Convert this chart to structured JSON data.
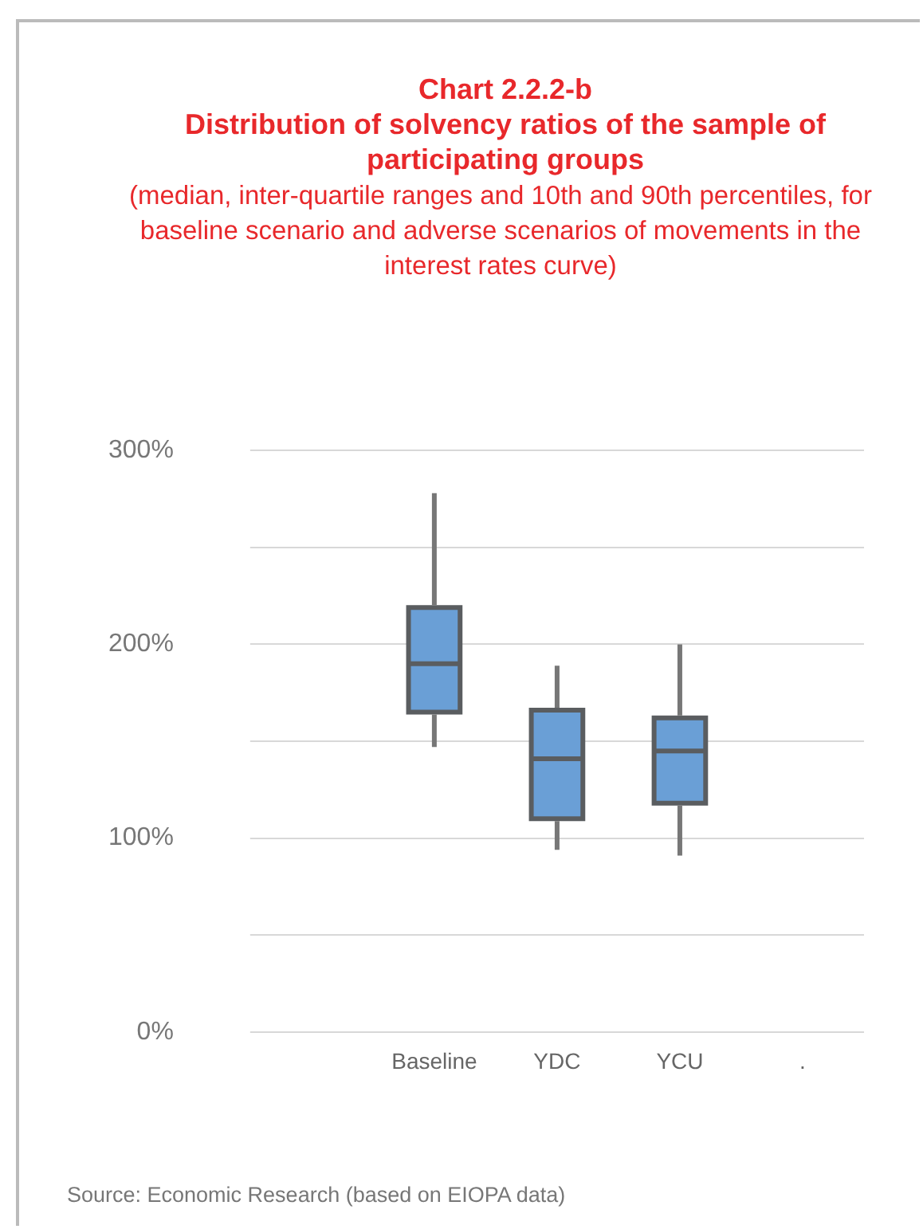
{
  "chart_data": {
    "type": "box",
    "title": "Chart 2.2.2-b\nDistribution of solvency ratios of the sample of participating groups",
    "subtitle": "(median, inter-quartile ranges and 10th and 90th percentiles, for baseline scenario and adverse scenarios of movements in the interest rates curve)",
    "categories": [
      null,
      "Baseline",
      "YDC",
      "YCU",
      "."
    ],
    "series": [
      {
        "color": "#6a9fd6",
        "boxes": [
          null,
          {
            "low": 147,
            "q1": 165,
            "median": 190,
            "q3": 219,
            "high": 278
          },
          {
            "low": 94,
            "q1": 110,
            "median": 141,
            "q3": 166,
            "high": 189
          },
          {
            "low": 91,
            "q1": 118,
            "median": 145,
            "q3": 162,
            "high": 200
          },
          null
        ]
      }
    ],
    "ylim": [
      0,
      300
    ],
    "yticks": [
      {
        "value": 0,
        "label": "0%"
      },
      {
        "value": 50,
        "label": null
      },
      {
        "value": 100,
        "label": "100%"
      },
      {
        "value": 150,
        "label": null
      },
      {
        "value": 200,
        "label": "200%"
      },
      {
        "value": 250,
        "label": null
      },
      {
        "value": 300,
        "label": "300%"
      }
    ],
    "grid": "y",
    "legend": false,
    "annotations": [
      "Source: Economic Research (based on EIOPA data)"
    ]
  }
}
